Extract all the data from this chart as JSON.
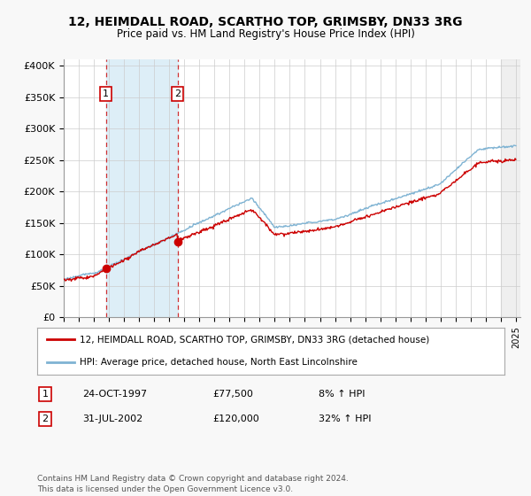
{
  "title": "12, HEIMDALL ROAD, SCARTHO TOP, GRIMSBY, DN33 3RG",
  "subtitle": "Price paid vs. HM Land Registry's House Price Index (HPI)",
  "ylim": [
    0,
    410000
  ],
  "yticks": [
    0,
    50000,
    100000,
    150000,
    200000,
    250000,
    300000,
    350000,
    400000
  ],
  "ytick_labels": [
    "£0",
    "£50K",
    "£100K",
    "£150K",
    "£200K",
    "£250K",
    "£300K",
    "£350K",
    "£400K"
  ],
  "house_color": "#cc0000",
  "hpi_color": "#7fb3d3",
  "fig_bg": "#f8f8f8",
  "plot_bg": "#ffffff",
  "transaction1_year": 1997.8,
  "transaction1_price": 77500,
  "transaction2_year": 2002.55,
  "transaction2_price": 120000,
  "legend_house": "12, HEIMDALL ROAD, SCARTHO TOP, GRIMSBY, DN33 3RG (detached house)",
  "legend_hpi": "HPI: Average price, detached house, North East Lincolnshire",
  "table_rows": [
    {
      "num": "1",
      "date": "24-OCT-1997",
      "price": "£77,500",
      "hpi": "8% ↑ HPI"
    },
    {
      "num": "2",
      "date": "31-JUL-2002",
      "price": "£120,000",
      "hpi": "32% ↑ HPI"
    }
  ],
  "footer": "Contains HM Land Registry data © Crown copyright and database right 2024.\nThis data is licensed under the Open Government Licence v3.0.",
  "shaded_between_color": "#ddeef7",
  "shaded_end_color": "#e0e0e0",
  "xmin": 1995,
  "xmax": 2025.3
}
